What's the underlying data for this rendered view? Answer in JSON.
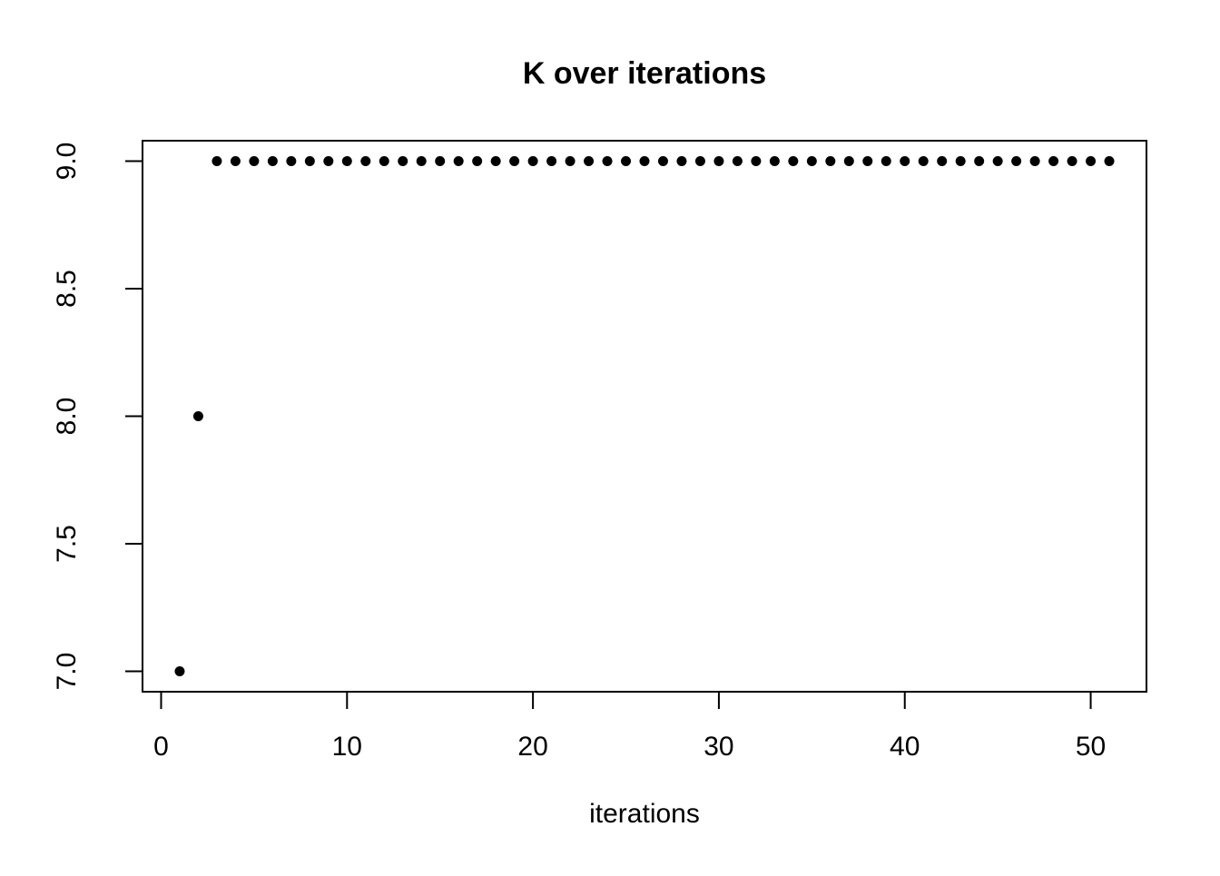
{
  "chart_data": {
    "type": "scatter",
    "title": "K over iterations",
    "xlabel": "iterations",
    "ylabel": "",
    "x": [
      1,
      2,
      3,
      4,
      5,
      6,
      7,
      8,
      9,
      10,
      11,
      12,
      13,
      14,
      15,
      16,
      17,
      18,
      19,
      20,
      21,
      22,
      23,
      24,
      25,
      26,
      27,
      28,
      29,
      30,
      31,
      32,
      33,
      34,
      35,
      36,
      37,
      38,
      39,
      40,
      41,
      42,
      43,
      44,
      45,
      46,
      47,
      48,
      49,
      50,
      51
    ],
    "y": [
      7,
      8,
      9,
      9,
      9,
      9,
      9,
      9,
      9,
      9,
      9,
      9,
      9,
      9,
      9,
      9,
      9,
      9,
      9,
      9,
      9,
      9,
      9,
      9,
      9,
      9,
      9,
      9,
      9,
      9,
      9,
      9,
      9,
      9,
      9,
      9,
      9,
      9,
      9,
      9,
      9,
      9,
      9,
      9,
      9,
      9,
      9,
      9,
      9,
      9,
      9
    ],
    "xlim": [
      -1.0,
      53.0
    ],
    "ylim": [
      6.92,
      9.08
    ],
    "xticks": [
      0,
      10,
      20,
      30,
      40,
      50
    ],
    "xtick_labels": [
      "0",
      "10",
      "20",
      "30",
      "40",
      "50"
    ],
    "yticks": [
      7.0,
      7.5,
      8.0,
      8.5,
      9.0
    ],
    "ytick_labels": [
      "7.0",
      "7.5",
      "8.0",
      "8.5",
      "9.0"
    ],
    "grid": false,
    "legend": "none",
    "point_style": "filled-circle",
    "point_color": "#000000",
    "axis_color": "#000000",
    "background": "#ffffff"
  }
}
